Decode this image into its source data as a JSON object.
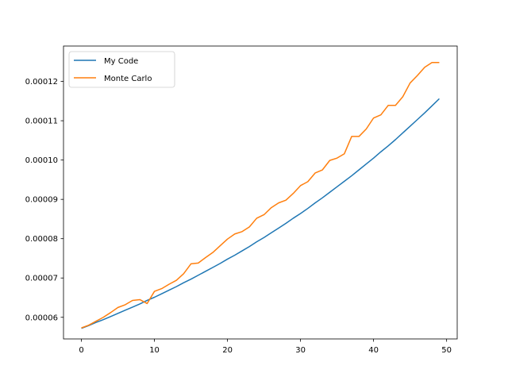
{
  "chart_data": {
    "type": "line",
    "title": "",
    "xlabel": "",
    "ylabel": "",
    "xlim": [
      -2.45,
      51.45
    ],
    "ylim": [
      5.45e-05,
      0.000129
    ],
    "xticks": [
      0,
      10,
      20,
      30,
      40,
      50
    ],
    "xtick_labels": [
      "0",
      "10",
      "20",
      "30",
      "40",
      "50"
    ],
    "yticks": [
      6e-05,
      7e-05,
      8e-05,
      9e-05,
      0.0001,
      0.00011,
      0.00012
    ],
    "ytick_labels": [
      "0.00006",
      "0.00007",
      "0.00008",
      "0.00009",
      "0.00010",
      "0.00011",
      "0.00012"
    ],
    "grid": false,
    "legend_position": "top-left",
    "x": [
      0,
      1,
      2,
      3,
      4,
      5,
      6,
      7,
      8,
      9,
      10,
      11,
      12,
      13,
      14,
      15,
      16,
      17,
      18,
      19,
      20,
      21,
      22,
      23,
      24,
      25,
      26,
      27,
      28,
      29,
      30,
      31,
      32,
      33,
      34,
      35,
      36,
      37,
      38,
      39,
      40,
      41,
      42,
      43,
      44,
      45,
      46,
      47,
      48,
      49
    ],
    "series": [
      {
        "name": "My Code",
        "color": "#1f77b4",
        "values": [
          5.72e-05,
          5.79e-05,
          5.87e-05,
          5.94e-05,
          6.02e-05,
          6.1e-05,
          6.18e-05,
          6.26e-05,
          6.34e-05,
          6.43e-05,
          6.51e-05,
          6.6e-05,
          6.69e-05,
          6.78e-05,
          6.88e-05,
          6.97e-05,
          7.07e-05,
          7.17e-05,
          7.27e-05,
          7.37e-05,
          7.48e-05,
          7.58e-05,
          7.69e-05,
          7.8e-05,
          7.92e-05,
          8.03e-05,
          8.15e-05,
          8.27e-05,
          8.39e-05,
          8.52e-05,
          8.64e-05,
          8.77e-05,
          8.91e-05,
          9.04e-05,
          9.18e-05,
          9.32e-05,
          9.46e-05,
          9.6e-05,
          9.75e-05,
          9.9e-05,
          0.0001005,
          0.0001021,
          0.0001036,
          0.0001052,
          0.0001069,
          0.0001086,
          0.0001103,
          0.000112,
          0.0001138,
          0.0001156
        ]
      },
      {
        "name": "Monte Carlo",
        "color": "#ff7f0e",
        "values": [
          5.73e-05,
          5.8e-05,
          5.9e-05,
          6e-05,
          6.12e-05,
          6.25e-05,
          6.32e-05,
          6.43e-05,
          6.45e-05,
          6.35e-05,
          6.66e-05,
          6.73e-05,
          6.84e-05,
          6.94e-05,
          7.11e-05,
          7.36e-05,
          7.38e-05,
          7.52e-05,
          7.65e-05,
          7.82e-05,
          7.99e-05,
          8.12e-05,
          8.18e-05,
          8.3e-05,
          8.52e-05,
          8.61e-05,
          8.79e-05,
          8.91e-05,
          8.98e-05,
          9.15e-05,
          9.35e-05,
          9.45e-05,
          9.67e-05,
          9.75e-05,
          9.99e-05,
          0.0001005,
          0.0001016,
          0.000106,
          0.000106,
          0.0001079,
          0.0001107,
          0.0001115,
          0.0001139,
          0.0001139,
          0.0001161,
          0.0001196,
          0.0001215,
          0.0001236,
          0.0001248,
          0.0001248
        ]
      }
    ]
  }
}
